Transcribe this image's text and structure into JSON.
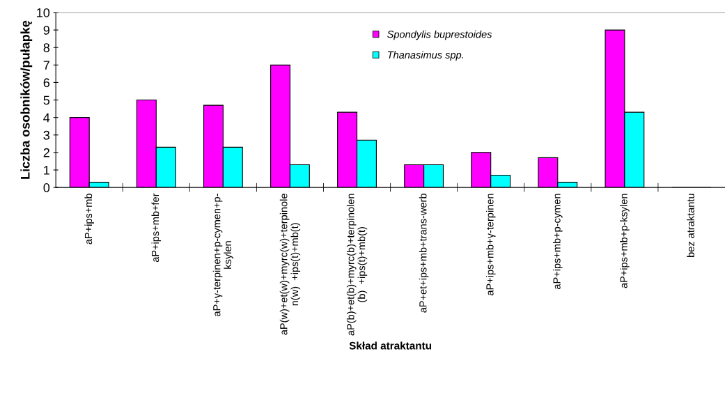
{
  "chart_data": {
    "type": "bar",
    "xlabel": "Skład atraktantu",
    "ylabel": "Liczba osobników/pułapkę",
    "categories": [
      "aP+ips+mb",
      "aP+ips+mb+fer",
      "aP+γ-terpinen+p-cymen+p-\nksylen",
      "aP(w)+et(w)+myrc(w)+terpinole\nn(w)  +ips(t)+mb(t)",
      "aP(b)+et(b)+myrc(b)+terpinolen\n(b)  +ips(t)+mb(t)",
      "aP+et+ips+mb+trans-werb",
      "aP+ips+mb+γ-terpinen",
      "aP+ips+mb+p-cymen",
      "aP+ips+mb+p-ksylen",
      "bez atraktantu"
    ],
    "series": [
      {
        "name": "Spondylis buprestoides",
        "color": "#ff00ff",
        "values": [
          4,
          5,
          4.7,
          7,
          4.3,
          1.3,
          2,
          1.7,
          9,
          0
        ]
      },
      {
        "name": "Thanasimus spp.",
        "color": "#00ffff",
        "values": [
          0.3,
          2.3,
          2.3,
          1.3,
          2.7,
          1.3,
          0.7,
          0.3,
          4.3,
          0
        ]
      }
    ],
    "ylim": [
      0,
      10
    ],
    "yticks": [
      0,
      1,
      2,
      3,
      4,
      5,
      6,
      7,
      8,
      9,
      10
    ],
    "grid": false,
    "legend": "top"
  }
}
